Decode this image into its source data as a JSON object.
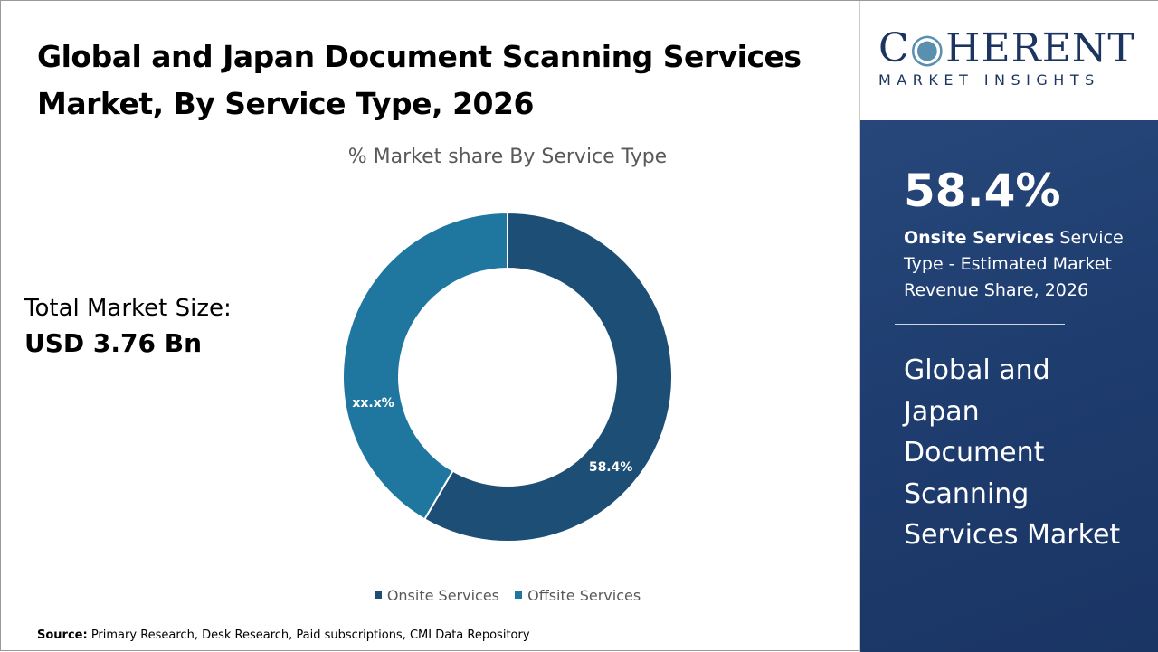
{
  "title": "Global and Japan Document Scanning Services Market, By Service Type, 2026",
  "total_market": {
    "label": "Total Market Size:",
    "value": "USD 3.76 Bn"
  },
  "source": {
    "label": "Source:",
    "text": " Primary Research, Desk Research, Paid subscriptions, CMI Data Repository"
  },
  "logo": {
    "main": "COHERENT",
    "sub": "MARKET INSIGHTS"
  },
  "panel": {
    "kpi": "58.4%",
    "kpi_bold": "Onsite Services",
    "kpi_rest": " Service Type - Estimated Market Revenue Share, 2026",
    "market_name": "Global and Japan Document Scanning Services Market"
  },
  "chart_data": {
    "type": "pie",
    "donut": true,
    "title": "% Market share By Service Type",
    "categories": [
      "Onsite Services",
      "Offsite Services"
    ],
    "values": [
      58.4,
      41.6
    ],
    "data_labels": [
      "58.4%",
      "xx.x%"
    ],
    "colors": [
      "#1d4f76",
      "#1f77a0"
    ],
    "legend": "bottom"
  }
}
